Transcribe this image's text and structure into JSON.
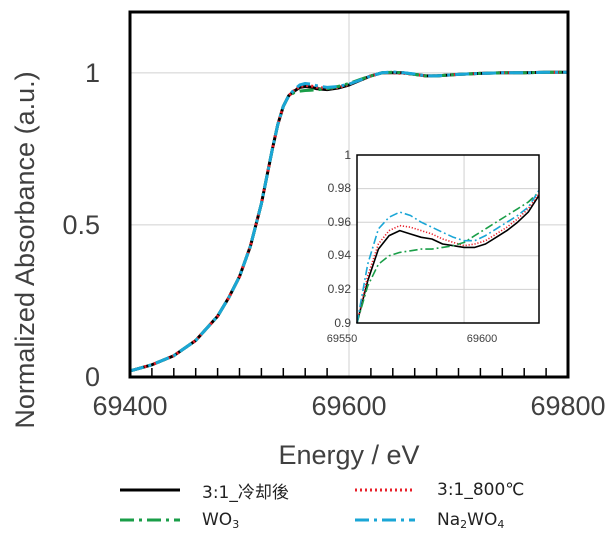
{
  "chart_data": [
    {
      "type": "line",
      "title": "",
      "xlabel": "Energy / eV",
      "ylabel": "Normalized Absorbance (a.u.)",
      "xlim": [
        69400,
        69800
      ],
      "ylim": [
        0,
        1.2
      ],
      "x_ticks": [
        "69400",
        "69600",
        "69800"
      ],
      "y_ticks": [
        "0",
        "0.5",
        "1"
      ],
      "grid": true,
      "legend": "bottom",
      "series": [
        {
          "name": "3:1_冷却後",
          "color": "#000000",
          "style": "solid",
          "x": [
            69400,
            69420,
            69440,
            69460,
            69480,
            69490,
            69500,
            69510,
            69515,
            69520,
            69525,
            69530,
            69535,
            69540,
            69545,
            69550,
            69555,
            69560,
            69565,
            69570,
            69580,
            69590,
            69600,
            69610,
            69620,
            69630,
            69640,
            69650,
            69660,
            69670,
            69680,
            69700,
            69720,
            69740,
            69760,
            69780,
            69800
          ],
          "y": [
            0.02,
            0.04,
            0.07,
            0.12,
            0.2,
            0.26,
            0.33,
            0.43,
            0.5,
            0.57,
            0.66,
            0.75,
            0.83,
            0.89,
            0.925,
            0.94,
            0.952,
            0.955,
            0.953,
            0.948,
            0.945,
            0.95,
            0.96,
            0.975,
            0.99,
            1.0,
            1.0,
            1.0,
            0.995,
            0.99,
            0.99,
            0.995,
            0.998,
            1.0,
            1.0,
            1.002,
            1.002
          ]
        },
        {
          "name": "3:1_800℃",
          "color": "#e8202a",
          "style": "dotted",
          "x": [
            69400,
            69420,
            69440,
            69460,
            69480,
            69490,
            69500,
            69510,
            69515,
            69520,
            69525,
            69530,
            69535,
            69540,
            69545,
            69550,
            69555,
            69560,
            69565,
            69570,
            69580,
            69590,
            69600,
            69610,
            69620,
            69630,
            69640,
            69650,
            69660,
            69670,
            69680,
            69700,
            69720,
            69740,
            69760,
            69780,
            69800
          ],
          "y": [
            0.02,
            0.04,
            0.07,
            0.12,
            0.2,
            0.26,
            0.33,
            0.43,
            0.5,
            0.57,
            0.66,
            0.75,
            0.83,
            0.89,
            0.925,
            0.942,
            0.955,
            0.958,
            0.957,
            0.953,
            0.948,
            0.952,
            0.962,
            0.977,
            0.99,
            1.0,
            1.0,
            0.998,
            0.995,
            0.99,
            0.99,
            0.995,
            0.998,
            1.0,
            1.0,
            1.002,
            1.002
          ]
        },
        {
          "name": "WO3",
          "color": "#1a9e48",
          "style": "dashdot",
          "x": [
            69400,
            69420,
            69440,
            69460,
            69480,
            69490,
            69500,
            69510,
            69515,
            69520,
            69525,
            69530,
            69535,
            69540,
            69545,
            69550,
            69555,
            69560,
            69565,
            69570,
            69580,
            69590,
            69600,
            69610,
            69620,
            69630,
            69640,
            69650,
            69660,
            69670,
            69680,
            69700,
            69720,
            69740,
            69760,
            69780,
            69800
          ],
          "y": [
            0.02,
            0.04,
            0.07,
            0.12,
            0.2,
            0.26,
            0.33,
            0.43,
            0.5,
            0.57,
            0.66,
            0.75,
            0.83,
            0.89,
            0.925,
            0.935,
            0.94,
            0.942,
            0.943,
            0.944,
            0.948,
            0.955,
            0.965,
            0.978,
            0.99,
            1.0,
            1.002,
            1.0,
            0.995,
            0.99,
            0.99,
            0.995,
            0.998,
            1.0,
            1.0,
            1.002,
            1.002
          ]
        },
        {
          "name": "Na2WO4",
          "color": "#1aa6d6",
          "style": "dashdot",
          "x": [
            69400,
            69420,
            69440,
            69460,
            69480,
            69490,
            69500,
            69510,
            69515,
            69520,
            69525,
            69530,
            69535,
            69540,
            69545,
            69550,
            69555,
            69560,
            69565,
            69570,
            69580,
            69590,
            69600,
            69610,
            69620,
            69630,
            69640,
            69650,
            69660,
            69670,
            69680,
            69700,
            69720,
            69740,
            69760,
            69780,
            69800
          ],
          "y": [
            0.02,
            0.04,
            0.07,
            0.12,
            0.2,
            0.26,
            0.33,
            0.43,
            0.5,
            0.57,
            0.66,
            0.75,
            0.83,
            0.89,
            0.925,
            0.945,
            0.96,
            0.965,
            0.963,
            0.958,
            0.952,
            0.955,
            0.963,
            0.976,
            0.99,
            1.0,
            1.003,
            1.0,
            0.996,
            0.99,
            0.99,
            0.995,
            0.998,
            1.0,
            1.0,
            1.002,
            1.002
          ]
        }
      ]
    },
    {
      "type": "line",
      "title": "",
      "xlim": [
        69550,
        69635
      ],
      "ylim": [
        0.9,
        1.0
      ],
      "x_ticks": [
        "69550",
        "69600"
      ],
      "y_ticks": [
        "0.9",
        "0.92",
        "0.94",
        "0.96",
        "0.98",
        "1"
      ],
      "grid": true,
      "series": [
        {
          "name": "3:1_冷却後",
          "color": "#000000",
          "style": "solid",
          "x": [
            69550,
            69555,
            69560,
            69565,
            69570,
            69575,
            69580,
            69585,
            69590,
            69595,
            69600,
            69605,
            69610,
            69615,
            69620,
            69625,
            69630,
            69635
          ],
          "y": [
            0.9,
            0.925,
            0.944,
            0.952,
            0.955,
            0.953,
            0.951,
            0.95,
            0.947,
            0.946,
            0.945,
            0.945,
            0.947,
            0.951,
            0.955,
            0.96,
            0.966,
            0.976
          ]
        },
        {
          "name": "3:1_800℃",
          "color": "#e8202a",
          "style": "dotted",
          "x": [
            69550,
            69555,
            69560,
            69565,
            69570,
            69575,
            69580,
            69585,
            69590,
            69595,
            69600,
            69605,
            69610,
            69615,
            69620,
            69625,
            69630,
            69635
          ],
          "y": [
            0.9,
            0.928,
            0.947,
            0.955,
            0.958,
            0.957,
            0.955,
            0.953,
            0.95,
            0.948,
            0.946,
            0.947,
            0.949,
            0.953,
            0.957,
            0.962,
            0.968,
            0.977
          ]
        },
        {
          "name": "WO3",
          "color": "#1a9e48",
          "style": "dashdot",
          "x": [
            69550,
            69555,
            69560,
            69565,
            69570,
            69575,
            69580,
            69585,
            69590,
            69595,
            69600,
            69605,
            69610,
            69615,
            69620,
            69625,
            69630,
            69635
          ],
          "y": [
            0.9,
            0.922,
            0.935,
            0.94,
            0.942,
            0.943,
            0.944,
            0.944,
            0.945,
            0.946,
            0.948,
            0.952,
            0.956,
            0.96,
            0.964,
            0.968,
            0.972,
            0.978
          ]
        },
        {
          "name": "Na2WO4",
          "color": "#1aa6d6",
          "style": "dashdot",
          "x": [
            69550,
            69555,
            69560,
            69565,
            69570,
            69575,
            69580,
            69585,
            69590,
            69595,
            69600,
            69605,
            69610,
            69615,
            69620,
            69625,
            69630,
            69635
          ],
          "y": [
            0.9,
            0.935,
            0.956,
            0.963,
            0.966,
            0.964,
            0.96,
            0.957,
            0.954,
            0.951,
            0.949,
            0.949,
            0.952,
            0.956,
            0.96,
            0.964,
            0.969,
            0.979
          ]
        }
      ]
    }
  ],
  "legend": {
    "items": [
      {
        "label": "3:1_冷却後",
        "color": "#000000",
        "style": "solid"
      },
      {
        "label": "3:1_800℃",
        "color": "#e8202a",
        "style": "dotted"
      },
      {
        "label_base": "WO",
        "label_sub": "3",
        "color": "#1a9e48",
        "style": "dashdot"
      },
      {
        "label_pre": "Na",
        "label_sub1": "2",
        "label_mid": "WO",
        "label_sub2": "4",
        "color": "#1aa6d6",
        "style": "dashdot"
      }
    ]
  }
}
